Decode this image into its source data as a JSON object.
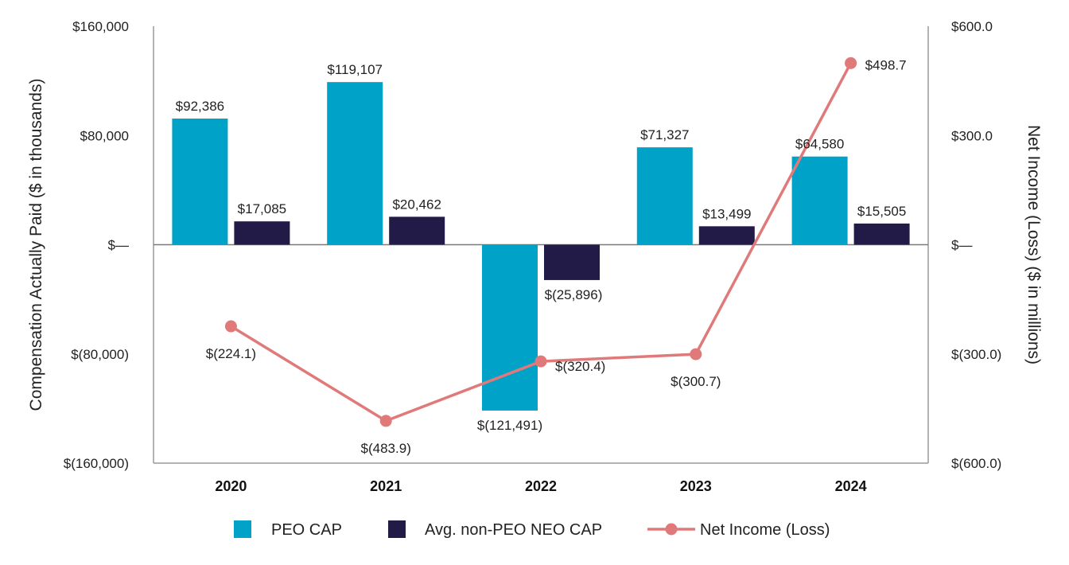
{
  "chart_data": {
    "type": "bar",
    "categories": [
      "2020",
      "2021",
      "2022",
      "2023",
      "2024"
    ],
    "series": [
      {
        "name": "PEO CAP",
        "axis": "left",
        "color": "#00A3C7",
        "values": [
          92386,
          119107,
          -121491,
          71327,
          64580
        ],
        "labels": [
          "$92,386",
          "$119,107",
          "$(121,491)",
          "$71,327",
          "$64,580"
        ]
      },
      {
        "name": "Avg. non-PEO NEO CAP",
        "axis": "left",
        "color": "#221A47",
        "values": [
          17085,
          20462,
          -25896,
          13499,
          15505
        ],
        "labels": [
          "$17,085",
          "$20,462",
          "$(25,896)",
          "$13,499",
          "$15,505"
        ]
      },
      {
        "name": "Net Income (Loss)",
        "type": "line",
        "axis": "right",
        "color": "#E07A7A",
        "values": [
          -224.1,
          -483.9,
          -320.4,
          -300.7,
          498.7
        ],
        "labels": [
          "$(224.1)",
          "$(483.9)",
          "$(320.4)",
          "$(300.7)",
          "$498.7"
        ]
      }
    ],
    "y_left": {
      "label": "Compensation Actually Paid ($ in thousands)",
      "range": [
        -160000,
        160000
      ],
      "ticks": [
        160000,
        80000,
        0,
        -80000,
        -160000
      ],
      "tick_labels": [
        "$160,000",
        "$80,000",
        "$—",
        "$(80,000)",
        "$(160,000)"
      ]
    },
    "y_right": {
      "label": "Net Income (Loss) ($ in millions)",
      "range": [
        -600,
        600
      ],
      "ticks": [
        600,
        300,
        0,
        -300,
        -600
      ],
      "tick_labels": [
        "$600.0",
        "$300.0",
        "$—",
        "$(300.0)",
        "$(600.0)"
      ]
    },
    "grid": false,
    "legend_position": "bottom-center",
    "legend": [
      "PEO CAP",
      "Avg. non-PEO NEO CAP",
      "Net Income (Loss)"
    ]
  }
}
